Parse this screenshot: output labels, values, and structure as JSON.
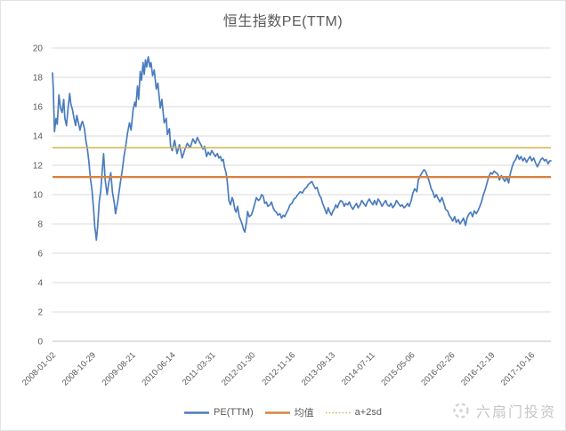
{
  "title": "恒生指数PE(TTM)",
  "legend": [
    {
      "label": "PE(TTM)",
      "color": "#4A7CBE",
      "style": "solid"
    },
    {
      "label": "均值",
      "color": "#D9823F",
      "style": "solid"
    },
    {
      "label": "a+2sd",
      "color": "#D2B44C",
      "style": "dotted"
    }
  ],
  "watermark": {
    "text": "六扇门投资",
    "icon": "sun-logo-icon"
  },
  "colors": {
    "series_pe": "#4A7CBE",
    "mean_line": "#D9823F",
    "sd_line": "#D2B44C",
    "gridline": "#d9d9d9",
    "axis_line": "#c3c3c3",
    "axis_text": "#595959",
    "title_text": "#595959",
    "watermark_text": "#c6c6c6"
  },
  "chart_data": {
    "type": "line",
    "title": "恒生指数PE(TTM)",
    "grid": true,
    "legend_position": "bottom",
    "ylim": [
      0,
      20
    ],
    "y_ticks": [
      0,
      2,
      4,
      6,
      8,
      10,
      12,
      14,
      16,
      18,
      20
    ],
    "x_tick_labels": [
      "2008-01-02",
      "2008-10-29",
      "2009-08-21",
      "2010-06-14",
      "2011-03-31",
      "2012-01-30",
      "2012-11-16",
      "2013-09-13",
      "2014-07-11",
      "2015-05-06",
      "2016-02-26",
      "2016-12-19",
      "2017-10-16"
    ],
    "x_span_intervals": 12.49,
    "series": [
      {
        "name": "PE(TTM)",
        "color": "#4A7CBE",
        "kind": "line",
        "points": [
          [
            0,
            18.3
          ],
          [
            0.02,
            17.2
          ],
          [
            0.05,
            14.3
          ],
          [
            0.09,
            15.2
          ],
          [
            0.12,
            14.8
          ],
          [
            0.16,
            16.8
          ],
          [
            0.2,
            15.9
          ],
          [
            0.24,
            15.6
          ],
          [
            0.28,
            16.5
          ],
          [
            0.31,
            15.2
          ],
          [
            0.35,
            14.7
          ],
          [
            0.39,
            15.9
          ],
          [
            0.43,
            16.9
          ],
          [
            0.46,
            16.2
          ],
          [
            0.5,
            15.8
          ],
          [
            0.54,
            15.2
          ],
          [
            0.58,
            14.7
          ],
          [
            0.61,
            15.4
          ],
          [
            0.65,
            14.9
          ],
          [
            0.69,
            14.4
          ],
          [
            0.72,
            14.8
          ],
          [
            0.75,
            15
          ],
          [
            0.8,
            14.5
          ],
          [
            0.84,
            13.6
          ],
          [
            0.87,
            13.2
          ],
          [
            0.91,
            12.3
          ],
          [
            0.95,
            11.1
          ],
          [
            0.99,
            10.3
          ],
          [
            1.03,
            9
          ],
          [
            1.06,
            7.8
          ],
          [
            1.08,
            7.4
          ],
          [
            1.1,
            6.9
          ],
          [
            1.13,
            7.8
          ],
          [
            1.17,
            9.5
          ],
          [
            1.21,
            10.3
          ],
          [
            1.24,
            11.4
          ],
          [
            1.28,
            12.8
          ],
          [
            1.32,
            11
          ],
          [
            1.37,
            10
          ],
          [
            1.41,
            10.8
          ],
          [
            1.46,
            11.5
          ],
          [
            1.5,
            10.2
          ],
          [
            1.55,
            9.4
          ],
          [
            1.58,
            8.7
          ],
          [
            1.64,
            9.6
          ],
          [
            1.7,
            10.8
          ],
          [
            1.75,
            11.7
          ],
          [
            1.79,
            12.6
          ],
          [
            1.84,
            13.4
          ],
          [
            1.88,
            14.2
          ],
          [
            1.93,
            14.9
          ],
          [
            1.97,
            14.4
          ],
          [
            2.02,
            15.8
          ],
          [
            2.06,
            16.3
          ],
          [
            2.09,
            16
          ],
          [
            2.13,
            17.4
          ],
          [
            2.16,
            16.5
          ],
          [
            2.2,
            18.4
          ],
          [
            2.23,
            17.8
          ],
          [
            2.27,
            19
          ],
          [
            2.3,
            18.2
          ],
          [
            2.33,
            19.2
          ],
          [
            2.36,
            18.7
          ],
          [
            2.4,
            19.4
          ],
          [
            2.44,
            18.7
          ],
          [
            2.47,
            19
          ],
          [
            2.51,
            18.1
          ],
          [
            2.55,
            18.5
          ],
          [
            2.6,
            17.2
          ],
          [
            2.64,
            17.6
          ],
          [
            2.7,
            15.9
          ],
          [
            2.74,
            16.5
          ],
          [
            2.8,
            14.9
          ],
          [
            2.85,
            15.2
          ],
          [
            2.88,
            14.1
          ],
          [
            2.93,
            14.5
          ],
          [
            2.96,
            13.3
          ],
          [
            3,
            13
          ],
          [
            3.06,
            13.7
          ],
          [
            3.12,
            12.8
          ],
          [
            3.18,
            13.4
          ],
          [
            3.25,
            12.5
          ],
          [
            3.32,
            13.1
          ],
          [
            3.38,
            13.5
          ],
          [
            3.45,
            13.2
          ],
          [
            3.52,
            13.8
          ],
          [
            3.58,
            13.5
          ],
          [
            3.63,
            13.9
          ],
          [
            3.68,
            13.6
          ],
          [
            3.72,
            13.4
          ],
          [
            3.77,
            13.1
          ],
          [
            3.81,
            13.3
          ],
          [
            3.86,
            12.6
          ],
          [
            3.9,
            12.9
          ],
          [
            3.95,
            12.7
          ],
          [
            3.99,
            13
          ],
          [
            4.04,
            12.8
          ],
          [
            4.08,
            12.6
          ],
          [
            4.13,
            12.8
          ],
          [
            4.17,
            12.5
          ],
          [
            4.21,
            12.6
          ],
          [
            4.24,
            12.3
          ],
          [
            4.28,
            12.4
          ],
          [
            4.31,
            11.9
          ],
          [
            4.35,
            11.5
          ],
          [
            4.38,
            10.9
          ],
          [
            4.42,
            9.6
          ],
          [
            4.46,
            9.3
          ],
          [
            4.5,
            9.8
          ],
          [
            4.53,
            9.6
          ],
          [
            4.57,
            9
          ],
          [
            4.6,
            8.8
          ],
          [
            4.64,
            9.2
          ],
          [
            4.68,
            8.5
          ],
          [
            4.71,
            8.3
          ],
          [
            4.75,
            8
          ],
          [
            4.79,
            7.6
          ],
          [
            4.82,
            7.45
          ],
          [
            4.86,
            8.1
          ],
          [
            4.89,
            8.85
          ],
          [
            4.93,
            8.5
          ],
          [
            4.98,
            8.6
          ],
          [
            5.02,
            8.9
          ],
          [
            5.06,
            9.3
          ],
          [
            5.11,
            9.8
          ],
          [
            5.16,
            9.6
          ],
          [
            5.2,
            9.7
          ],
          [
            5.24,
            10
          ],
          [
            5.28,
            9.9
          ],
          [
            5.32,
            9.4
          ],
          [
            5.36,
            9.5
          ],
          [
            5.4,
            9.2
          ],
          [
            5.45,
            9.3
          ],
          [
            5.49,
            9.5
          ],
          [
            5.53,
            9.1
          ],
          [
            5.57,
            8.9
          ],
          [
            5.61,
            8.8
          ],
          [
            5.65,
            8.6
          ],
          [
            5.7,
            8.7
          ],
          [
            5.74,
            8.4
          ],
          [
            5.78,
            8.6
          ],
          [
            5.82,
            8.5
          ],
          [
            5.87,
            8.8
          ],
          [
            5.91,
            9
          ],
          [
            5.95,
            9.3
          ],
          [
            6,
            9.4
          ],
          [
            6.05,
            9.7
          ],
          [
            6.1,
            9.8
          ],
          [
            6.15,
            10
          ],
          [
            6.21,
            10.2
          ],
          [
            6.26,
            10.1
          ],
          [
            6.32,
            10.4
          ],
          [
            6.37,
            10.5
          ],
          [
            6.41,
            10.7
          ],
          [
            6.46,
            10.8
          ],
          [
            6.5,
            10.9
          ],
          [
            6.55,
            10.6
          ],
          [
            6.59,
            10.4
          ],
          [
            6.63,
            10.5
          ],
          [
            6.66,
            10.2
          ],
          [
            6.7,
            9.9
          ],
          [
            6.73,
            9.8
          ],
          [
            6.77,
            9.4
          ],
          [
            6.8,
            9.2
          ],
          [
            6.84,
            8.9
          ],
          [
            6.87,
            8.7
          ],
          [
            6.91,
            9.1
          ],
          [
            6.95,
            8.8
          ],
          [
            6.99,
            8.6
          ],
          [
            7.03,
            8.9
          ],
          [
            7.06,
            9
          ],
          [
            7.1,
            9.3
          ],
          [
            7.14,
            9.1
          ],
          [
            7.18,
            9.4
          ],
          [
            7.22,
            9.6
          ],
          [
            7.27,
            9.5
          ],
          [
            7.31,
            9.2
          ],
          [
            7.35,
            9.4
          ],
          [
            7.4,
            9.3
          ],
          [
            7.44,
            9.5
          ],
          [
            7.48,
            9.2
          ],
          [
            7.53,
            9
          ],
          [
            7.57,
            9.2
          ],
          [
            7.62,
            9.4
          ],
          [
            7.66,
            9.1
          ],
          [
            7.71,
            9.3
          ],
          [
            7.75,
            9.6
          ],
          [
            7.8,
            9.4
          ],
          [
            7.85,
            9.2
          ],
          [
            7.89,
            9.5
          ],
          [
            7.94,
            9.7
          ],
          [
            7.98,
            9.5
          ],
          [
            8.03,
            9.3
          ],
          [
            8.07,
            9.6
          ],
          [
            8.12,
            9.3
          ],
          [
            8.16,
            9.7
          ],
          [
            8.21,
            9.5
          ],
          [
            8.26,
            9.2
          ],
          [
            8.3,
            9.4
          ],
          [
            8.35,
            9.6
          ],
          [
            8.39,
            9.3
          ],
          [
            8.44,
            9.2
          ],
          [
            8.48,
            9.4
          ],
          [
            8.53,
            9.1
          ],
          [
            8.58,
            9.3
          ],
          [
            8.62,
            9.6
          ],
          [
            8.67,
            9.4
          ],
          [
            8.72,
            9.2
          ],
          [
            8.76,
            9.3
          ],
          [
            8.81,
            9.1
          ],
          [
            8.85,
            9.2
          ],
          [
            8.9,
            9.4
          ],
          [
            8.94,
            9.2
          ],
          [
            8.99,
            9.6
          ],
          [
            9.03,
            10.1
          ],
          [
            9.08,
            10.4
          ],
          [
            9.13,
            10.2
          ],
          [
            9.17,
            11
          ],
          [
            9.22,
            11.3
          ],
          [
            9.26,
            11.5
          ],
          [
            9.31,
            11.7
          ],
          [
            9.35,
            11.6
          ],
          [
            9.4,
            11.2
          ],
          [
            9.44,
            10.9
          ],
          [
            9.49,
            10.4
          ],
          [
            9.53,
            10.2
          ],
          [
            9.58,
            9.8
          ],
          [
            9.62,
            10
          ],
          [
            9.67,
            9.7
          ],
          [
            9.71,
            9.5
          ],
          [
            9.76,
            9.8
          ],
          [
            9.81,
            9.4
          ],
          [
            9.85,
            9
          ],
          [
            9.9,
            8.9
          ],
          [
            9.94,
            8.6
          ],
          [
            9.99,
            8.4
          ],
          [
            10.03,
            8.2
          ],
          [
            10.08,
            8.5
          ],
          [
            10.12,
            8.1
          ],
          [
            10.17,
            8.3
          ],
          [
            10.21,
            8
          ],
          [
            10.26,
            8.2
          ],
          [
            10.3,
            8.4
          ],
          [
            10.35,
            7.9
          ],
          [
            10.39,
            8.4
          ],
          [
            10.44,
            8.7
          ],
          [
            10.48,
            8.8
          ],
          [
            10.53,
            8.5
          ],
          [
            10.57,
            8.9
          ],
          [
            10.62,
            8.7
          ],
          [
            10.66,
            8.9
          ],
          [
            10.71,
            9.2
          ],
          [
            10.75,
            9.5
          ],
          [
            10.8,
            10
          ],
          [
            10.84,
            10.3
          ],
          [
            10.89,
            10.8
          ],
          [
            10.93,
            11.2
          ],
          [
            10.98,
            11.5
          ],
          [
            11.02,
            11.4
          ],
          [
            11.07,
            11.6
          ],
          [
            11.11,
            11.5
          ],
          [
            11.16,
            11.4
          ],
          [
            11.2,
            11
          ],
          [
            11.25,
            11.3
          ],
          [
            11.29,
            11.1
          ],
          [
            11.34,
            10.9
          ],
          [
            11.38,
            11.2
          ],
          [
            11.43,
            10.8
          ],
          [
            11.47,
            11.4
          ],
          [
            11.52,
            11.9
          ],
          [
            11.56,
            12.2
          ],
          [
            11.61,
            12.4
          ],
          [
            11.65,
            12.7
          ],
          [
            11.7,
            12.4
          ],
          [
            11.74,
            12.6
          ],
          [
            11.79,
            12.3
          ],
          [
            11.83,
            12.5
          ],
          [
            11.88,
            12.2
          ],
          [
            11.92,
            12.4
          ],
          [
            11.97,
            12.6
          ],
          [
            12.01,
            12.3
          ],
          [
            12.06,
            12.5
          ],
          [
            12.1,
            12.2
          ],
          [
            12.15,
            11.9
          ],
          [
            12.19,
            12.1
          ],
          [
            12.24,
            12.4
          ],
          [
            12.28,
            12.5
          ],
          [
            12.33,
            12.3
          ],
          [
            12.37,
            12.4
          ],
          [
            12.42,
            12.1
          ],
          [
            12.46,
            12.3
          ],
          [
            12.49,
            12.3
          ]
        ]
      },
      {
        "name": "均值",
        "color": "#D9823F",
        "kind": "hline",
        "value": 11.2
      },
      {
        "name": "a+2sd",
        "color": "#D2B44C",
        "kind": "hline",
        "value": 13.2,
        "line_style": "dotted"
      }
    ]
  }
}
